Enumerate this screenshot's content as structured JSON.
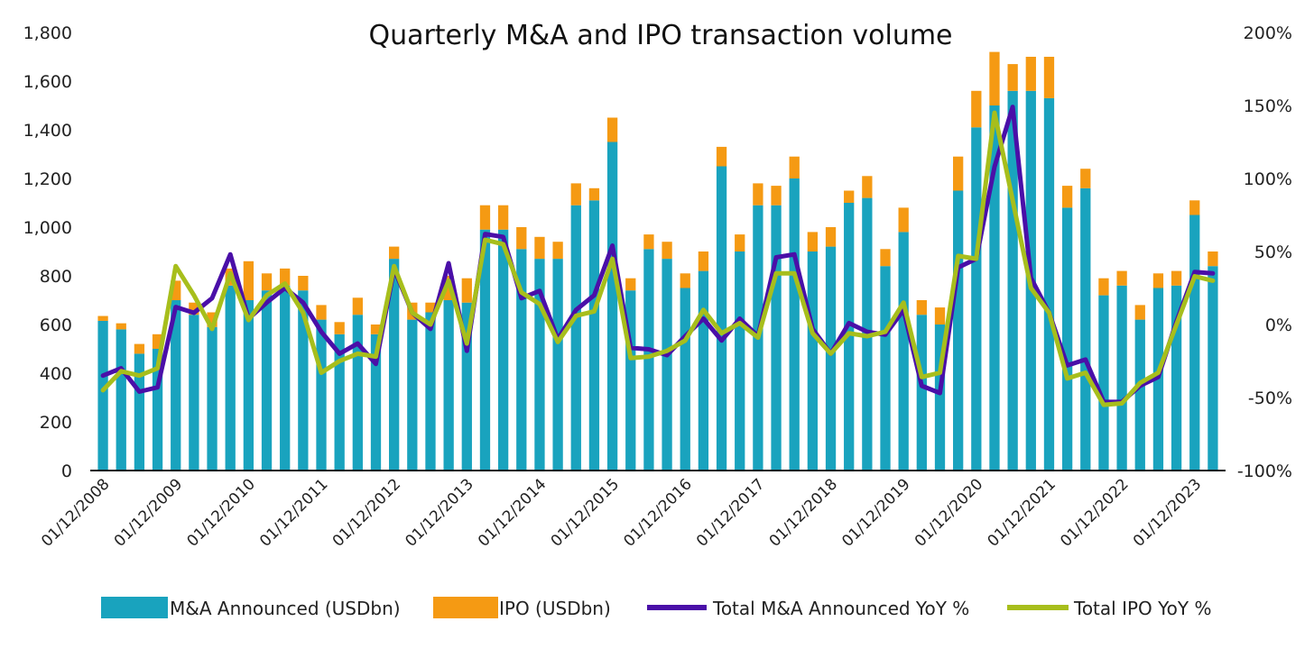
{
  "chart_data": {
    "type": "bar",
    "title": "Quarterly M&A and IPO transaction volume",
    "xlabel": "",
    "ylabel": "",
    "ylim": [
      0,
      1800
    ],
    "y2lim": [
      -100,
      200
    ],
    "yticks": [
      "0",
      "200",
      "400",
      "600",
      "800",
      "1,000",
      "1,200",
      "1,400",
      "1,600",
      "1,800"
    ],
    "y2ticks": [
      "-100%",
      "-50%",
      "0%",
      "50%",
      "100%",
      "150%",
      "200%"
    ],
    "xticklabels": [
      "01/12/2008",
      "01/12/2009",
      "01/12/2010",
      "01/12/2011",
      "01/12/2012",
      "01/12/2013",
      "01/12/2014",
      "01/12/2015",
      "01/12/2016",
      "01/12/2017",
      "01/12/2018",
      "01/12/2019",
      "01/12/2020",
      "01/12/2021",
      "01/12/2022",
      "01/12/2023"
    ],
    "x_tick_every": 4,
    "grid": false,
    "legend": "bottom",
    "stacked": true,
    "colors": {
      "ma": "#19A3BE",
      "ipo": "#F59A13",
      "ma_yoy": "#4A0FA8",
      "ipo_yoy": "#A7BE1C"
    },
    "series": [
      {
        "name": "M&A Announced (USDbn)",
        "type": "bar",
        "axis": "left",
        "values": [
          615,
          580,
          480,
          500,
          700,
          640,
          590,
          760,
          700,
          740,
          760,
          740,
          620,
          560,
          640,
          560,
          870,
          620,
          650,
          700,
          690,
          990,
          990,
          910,
          870,
          870,
          1090,
          1110,
          1350,
          740,
          910,
          870,
          750,
          820,
          1250,
          900,
          1090,
          1090,
          1200,
          900,
          920,
          1100,
          1120,
          840,
          980,
          640,
          600,
          1150,
          1410,
          1500,
          1560,
          1560,
          1530,
          1080,
          1160,
          720,
          760,
          620,
          750,
          760,
          1050,
          840
        ]
      },
      {
        "name": "IPO (USDbn)",
        "type": "bar",
        "axis": "left",
        "values": [
          20,
          25,
          40,
          60,
          80,
          50,
          60,
          70,
          160,
          70,
          70,
          60,
          60,
          50,
          70,
          40,
          50,
          70,
          40,
          100,
          100,
          100,
          100,
          90,
          90,
          70,
          90,
          50,
          100,
          50,
          60,
          70,
          60,
          80,
          80,
          70,
          90,
          80,
          90,
          80,
          80,
          50,
          90,
          70,
          100,
          60,
          70,
          140,
          150,
          220,
          110,
          140,
          170,
          90,
          80,
          70,
          60,
          60,
          60,
          60,
          60,
          60
        ]
      },
      {
        "name": "Total M&A Announced YoY %",
        "type": "line",
        "axis": "right",
        "values": [
          -35,
          -30,
          -46,
          -43,
          12,
          8,
          18,
          48,
          4,
          15,
          25,
          15,
          -5,
          -20,
          -13,
          -27,
          38,
          8,
          -3,
          42,
          -18,
          62,
          60,
          18,
          23,
          -10,
          10,
          20,
          54,
          -16,
          -17,
          -21,
          -8,
          4,
          -11,
          4,
          -8,
          46,
          48,
          -3,
          -20,
          1,
          -5,
          -7,
          10,
          -42,
          -47,
          39,
          45,
          108,
          149,
          32,
          8,
          -28,
          -24,
          -53,
          -53,
          -42,
          -36,
          2,
          36,
          35
        ]
      },
      {
        "name": "Total IPO YoY %",
        "type": "line",
        "axis": "right",
        "values": [
          -45,
          -32,
          -35,
          -30,
          40,
          20,
          -3,
          35,
          3,
          20,
          28,
          8,
          -33,
          -25,
          -20,
          -22,
          40,
          8,
          0,
          30,
          -13,
          58,
          55,
          22,
          14,
          -12,
          6,
          9,
          45,
          -23,
          -22,
          -18,
          -11,
          10,
          -6,
          1,
          -9,
          35,
          35,
          -6,
          -20,
          -6,
          -8,
          -5,
          15,
          -36,
          -33,
          47,
          45,
          145,
          85,
          25,
          8,
          -37,
          -33,
          -55,
          -54,
          -40,
          -33,
          0,
          33,
          30
        ]
      }
    ]
  }
}
